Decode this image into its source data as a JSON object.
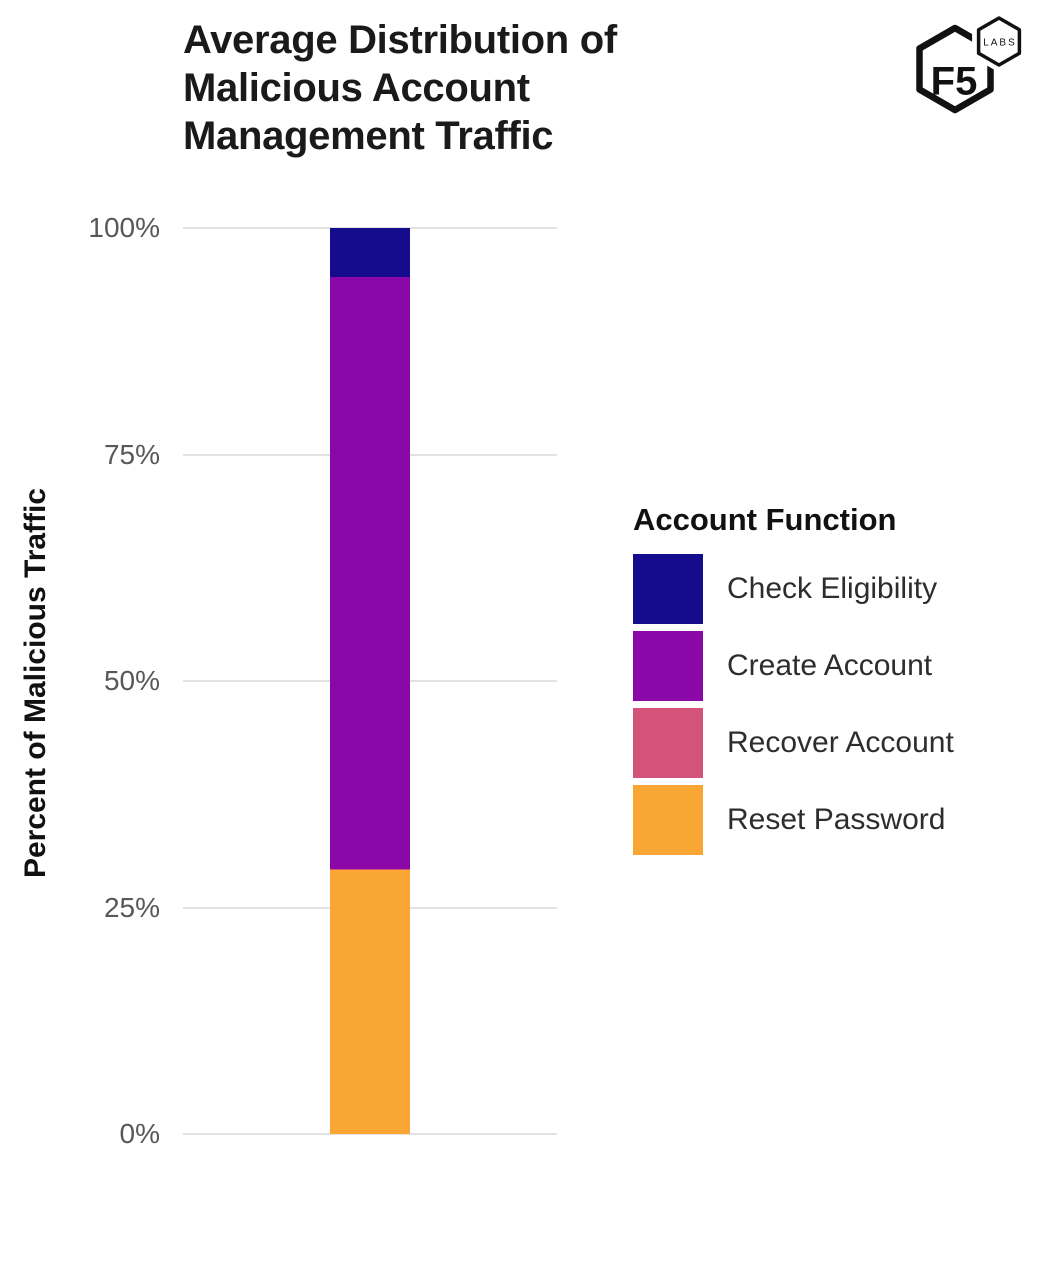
{
  "header": {
    "title_lines": [
      "Average Distribution of",
      "Malicious Account",
      "Management Traffic"
    ]
  },
  "logo": {
    "brand": "F5",
    "sub": "LABS"
  },
  "chart_data": {
    "type": "bar",
    "stacked": true,
    "title": "Average Distribution of Malicious Account Management Traffic",
    "xlabel": "",
    "ylabel": "Percent of Malicious Traffic",
    "ylim": [
      0,
      100
    ],
    "grid": true,
    "yticks": [
      {
        "value": 0,
        "label": "0%"
      },
      {
        "value": 25,
        "label": "25%"
      },
      {
        "value": 50,
        "label": "50%"
      },
      {
        "value": 75,
        "label": "75%"
      },
      {
        "value": 100,
        "label": "100%"
      }
    ],
    "legend_title": "Account Function",
    "legend_position": "right",
    "categories": [
      ""
    ],
    "series": [
      {
        "name": "Check Eligibility",
        "value": 5.4,
        "color": "#140C8C"
      },
      {
        "name": "Create Account",
        "value": 65.4,
        "color": "#8A08A8"
      },
      {
        "name": "Recover Account",
        "value": 0.1,
        "color": "#D4537A"
      },
      {
        "name": "Reset Password",
        "value": 29.1,
        "color": "#FAA635"
      }
    ]
  },
  "colors": {
    "grid_line": "#E2E2E2",
    "tick_text": "#58585A",
    "title_text": "#1A1A1A",
    "legend_text": "#2D2D2D",
    "background": "#FFFFFF"
  }
}
